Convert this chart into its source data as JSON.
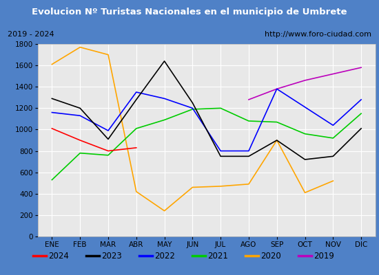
{
  "title": "Evolucion Nº Turistas Nacionales en el municipio de Umbrete",
  "subtitle_left": "2019 - 2024",
  "subtitle_right": "http://www.foro-ciudad.com",
  "months": [
    "ENE",
    "FEB",
    "MAR",
    "ABR",
    "MAY",
    "JUN",
    "JUL",
    "AGO",
    "SEP",
    "OCT",
    "NOV",
    "DIC"
  ],
  "series": {
    "2024": [
      1010,
      900,
      800,
      830,
      null,
      null,
      null,
      null,
      null,
      null,
      null,
      null
    ],
    "2023": [
      1290,
      1200,
      910,
      1280,
      1640,
      1250,
      750,
      750,
      900,
      720,
      750,
      1010
    ],
    "2022": [
      1160,
      1130,
      990,
      1350,
      1290,
      1200,
      800,
      800,
      1380,
      1210,
      1040,
      1280
    ],
    "2021": [
      530,
      780,
      760,
      1010,
      1090,
      1190,
      1200,
      1080,
      1070,
      960,
      920,
      1150
    ],
    "2020": [
      1610,
      1770,
      1700,
      420,
      240,
      460,
      470,
      490,
      900,
      410,
      520,
      null
    ],
    "2019": [
      null,
      null,
      null,
      null,
      null,
      null,
      null,
      1280,
      1380,
      1460,
      1520,
      1580
    ]
  },
  "colors": {
    "2024": "#ff0000",
    "2023": "#000000",
    "2022": "#0000ff",
    "2021": "#00cc00",
    "2020": "#ffa500",
    "2019": "#bb00bb"
  },
  "ylim": [
    0,
    1800
  ],
  "yticks": [
    0,
    200,
    400,
    600,
    800,
    1000,
    1200,
    1400,
    1600,
    1800
  ],
  "title_bg_color": "#4f81c7",
  "title_text_color": "#ffffff",
  "plot_bg_color": "#e8e8e8",
  "grid_color": "#ffffff",
  "outer_bg_color": "#4f81c7",
  "subtitle_bg": "#dcdcdc",
  "legend_order": [
    "2024",
    "2023",
    "2022",
    "2021",
    "2020",
    "2019"
  ]
}
